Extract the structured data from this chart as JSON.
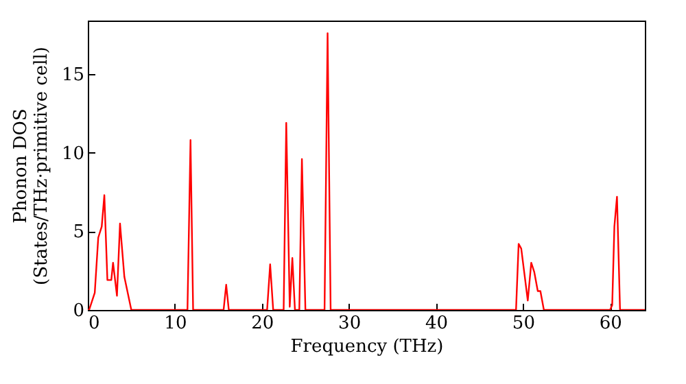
{
  "chart_data": {
    "type": "line",
    "xlabel": "Frequency (THz)",
    "ylabel": "Phonon DOS\n(States/THz·primitive cell)",
    "x": [
      0,
      0.15,
      0.8,
      1.2,
      1.6,
      1.9,
      2.25,
      2.7,
      2.9,
      3.35,
      3.7,
      4.2,
      5.0,
      11.45,
      11.8,
      12.1,
      15.6,
      15.9,
      16.2,
      20.6,
      20.95,
      21.3,
      22.5,
      22.8,
      23.2,
      23.5,
      23.8,
      24.3,
      24.6,
      25.0,
      27.2,
      27.55,
      27.9,
      49.2,
      49.5,
      49.8,
      50.55,
      50.95,
      51.3,
      51.7,
      52.0,
      52.4,
      60.0,
      60.25,
      60.5,
      60.8,
      61.15,
      64
    ],
    "series": [
      {
        "color": "#ff0000",
        "values": [
          0,
          0,
          1.1,
          4.6,
          5.3,
          7.3,
          1.9,
          1.9,
          3.0,
          0.9,
          5.5,
          2.1,
          0,
          0,
          10.8,
          0,
          0,
          1.6,
          0,
          0,
          2.9,
          0,
          0,
          11.9,
          0.2,
          3.3,
          0,
          0,
          9.6,
          0,
          0,
          17.6,
          0,
          0,
          4.2,
          3.9,
          0.6,
          3.0,
          2.4,
          1.2,
          1.2,
          0,
          0,
          0.3,
          5.3,
          7.2,
          0,
          0
        ]
      }
    ],
    "xlim": [
      0,
      64
    ],
    "xticks": [
      0,
      10,
      20,
      30,
      40,
      50,
      60
    ],
    "ylim": [
      0,
      18.4
    ],
    "yticks": [
      0,
      5,
      10,
      15
    ],
    "grid": false,
    "marker": "none",
    "line_style": "solid"
  }
}
